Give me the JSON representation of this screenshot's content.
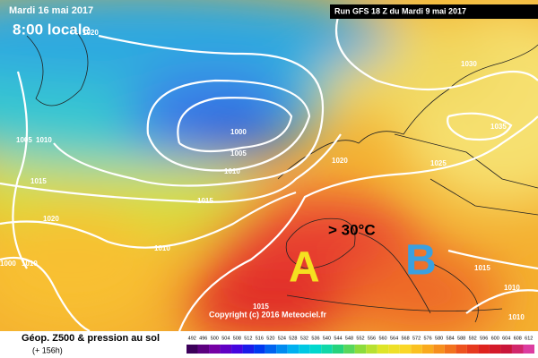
{
  "header": {
    "date": "Mardi 16 mai 2017",
    "time": "8:00 locale",
    "run": "Run GFS 18 Z du Mardi 9 mai 2017"
  },
  "isobars": [
    "1020",
    "1000",
    "1005",
    "1010",
    "1005",
    "1010",
    "1015",
    "1020",
    "1015",
    "1010",
    "1000",
    "1010",
    "1015",
    "1020",
    "1025",
    "1030",
    "1035",
    "1015",
    "1010",
    "1010"
  ],
  "annotations": {
    "temperature": "> 30°C",
    "zone_a": "A",
    "zone_b": "B"
  },
  "copyright": "Copyright (c) 2016 Meteociel.fr",
  "footer": {
    "title": "Géop. Z500 & pression au sol",
    "lead": "(+ 156h)"
  },
  "scale": [
    492,
    496,
    500,
    504,
    508,
    512,
    516,
    520,
    524,
    528,
    532,
    536,
    540,
    544,
    548,
    552,
    556,
    560,
    564,
    568,
    572,
    576,
    580,
    584,
    588,
    592,
    596,
    600,
    604,
    608,
    612
  ]
}
